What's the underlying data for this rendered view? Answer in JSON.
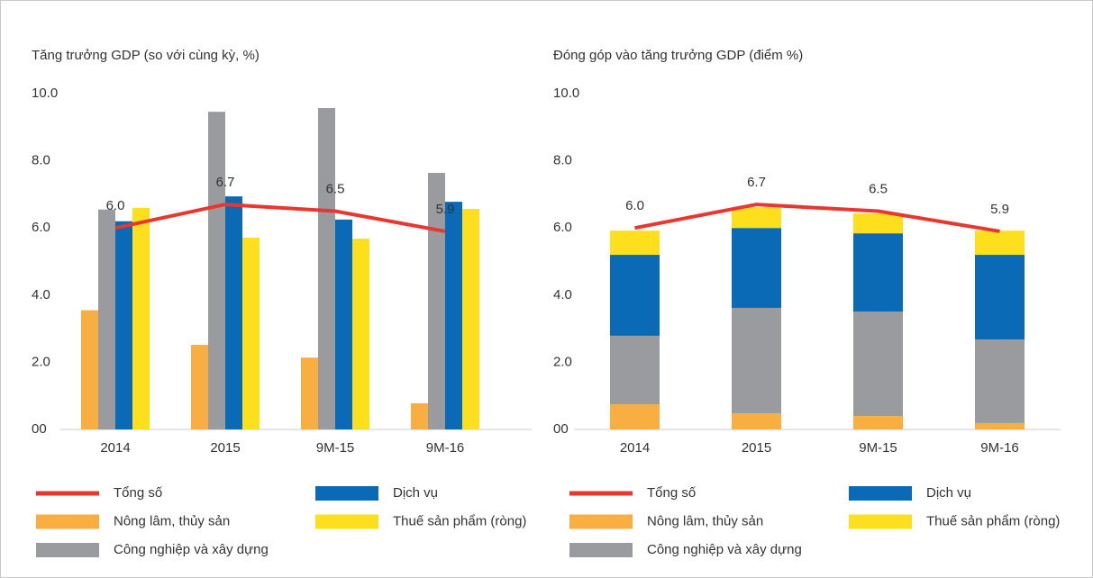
{
  "chart_data": [
    {
      "type": "bar",
      "title": "Tăng trưởng GDP (so với cùng kỳ, %)",
      "categories": [
        "2014",
        "2015",
        "9M-15",
        "9M-16"
      ],
      "ylim": [
        0,
        10
      ],
      "yticks": [
        {
          "value": 0,
          "label": "00"
        },
        {
          "value": 2,
          "label": "2.0"
        },
        {
          "value": 4,
          "label": "4.0"
        },
        {
          "value": 6,
          "label": "6.0"
        },
        {
          "value": 8,
          "label": "8.0"
        },
        {
          "value": 10,
          "label": "10.0"
        }
      ],
      "series": [
        {
          "name": "Tổng số",
          "type": "line",
          "color": "#e8372e",
          "values": [
            6.0,
            6.7,
            6.5,
            5.9
          ],
          "value_labels": [
            "6.0",
            "6.7",
            "6.5",
            "5.9"
          ]
        },
        {
          "name": "Nông lâm, thủy sản",
          "color": "#f9ae42",
          "values": [
            3.55,
            2.52,
            2.14,
            0.78
          ]
        },
        {
          "name": "Công nghiệp và xây dựng",
          "color": "#999b9e",
          "values": [
            6.55,
            9.46,
            9.57,
            7.64
          ]
        },
        {
          "name": "Dịch vụ",
          "color": "#0a6ab6",
          "values": [
            6.2,
            6.94,
            6.25,
            6.78
          ]
        },
        {
          "name": "Thuế sản phẩm (ròng)",
          "color": "#fddf1e",
          "values": [
            6.6,
            5.71,
            5.68,
            6.57
          ]
        }
      ]
    },
    {
      "type": "stacked_bar",
      "title": "Đóng góp vào tăng trưởng GDP (điểm %)",
      "categories": [
        "2014",
        "2015",
        "9M-15",
        "9M-16"
      ],
      "ylim": [
        0,
        10
      ],
      "yticks": [
        {
          "value": 0,
          "label": "00"
        },
        {
          "value": 2,
          "label": "2.0"
        },
        {
          "value": 4,
          "label": "4.0"
        },
        {
          "value": 6,
          "label": "6.0"
        },
        {
          "value": 8,
          "label": "8.0"
        },
        {
          "value": 10,
          "label": "10.0"
        }
      ],
      "series": [
        {
          "name": "Tổng số",
          "type": "line",
          "color": "#e8372e",
          "values": [
            6.0,
            6.7,
            6.5,
            5.9
          ],
          "value_labels": [
            "6.0",
            "6.7",
            "6.5",
            "5.9"
          ]
        },
        {
          "name": "Nông lâm, thủy sản",
          "color": "#f9ae42",
          "values": [
            0.75,
            0.48,
            0.4,
            0.19
          ]
        },
        {
          "name": "Công nghiệp và xây dựng",
          "color": "#999b9e",
          "values": [
            2.04,
            3.14,
            3.11,
            2.49
          ]
        },
        {
          "name": "Dịch vụ",
          "color": "#0a6ab6",
          "values": [
            2.41,
            2.38,
            2.33,
            2.52
          ]
        },
        {
          "name": "Thuế sản phẩm (ròng)",
          "color": "#fddf1e",
          "values": [
            0.72,
            0.62,
            0.59,
            0.72
          ]
        }
      ]
    }
  ]
}
